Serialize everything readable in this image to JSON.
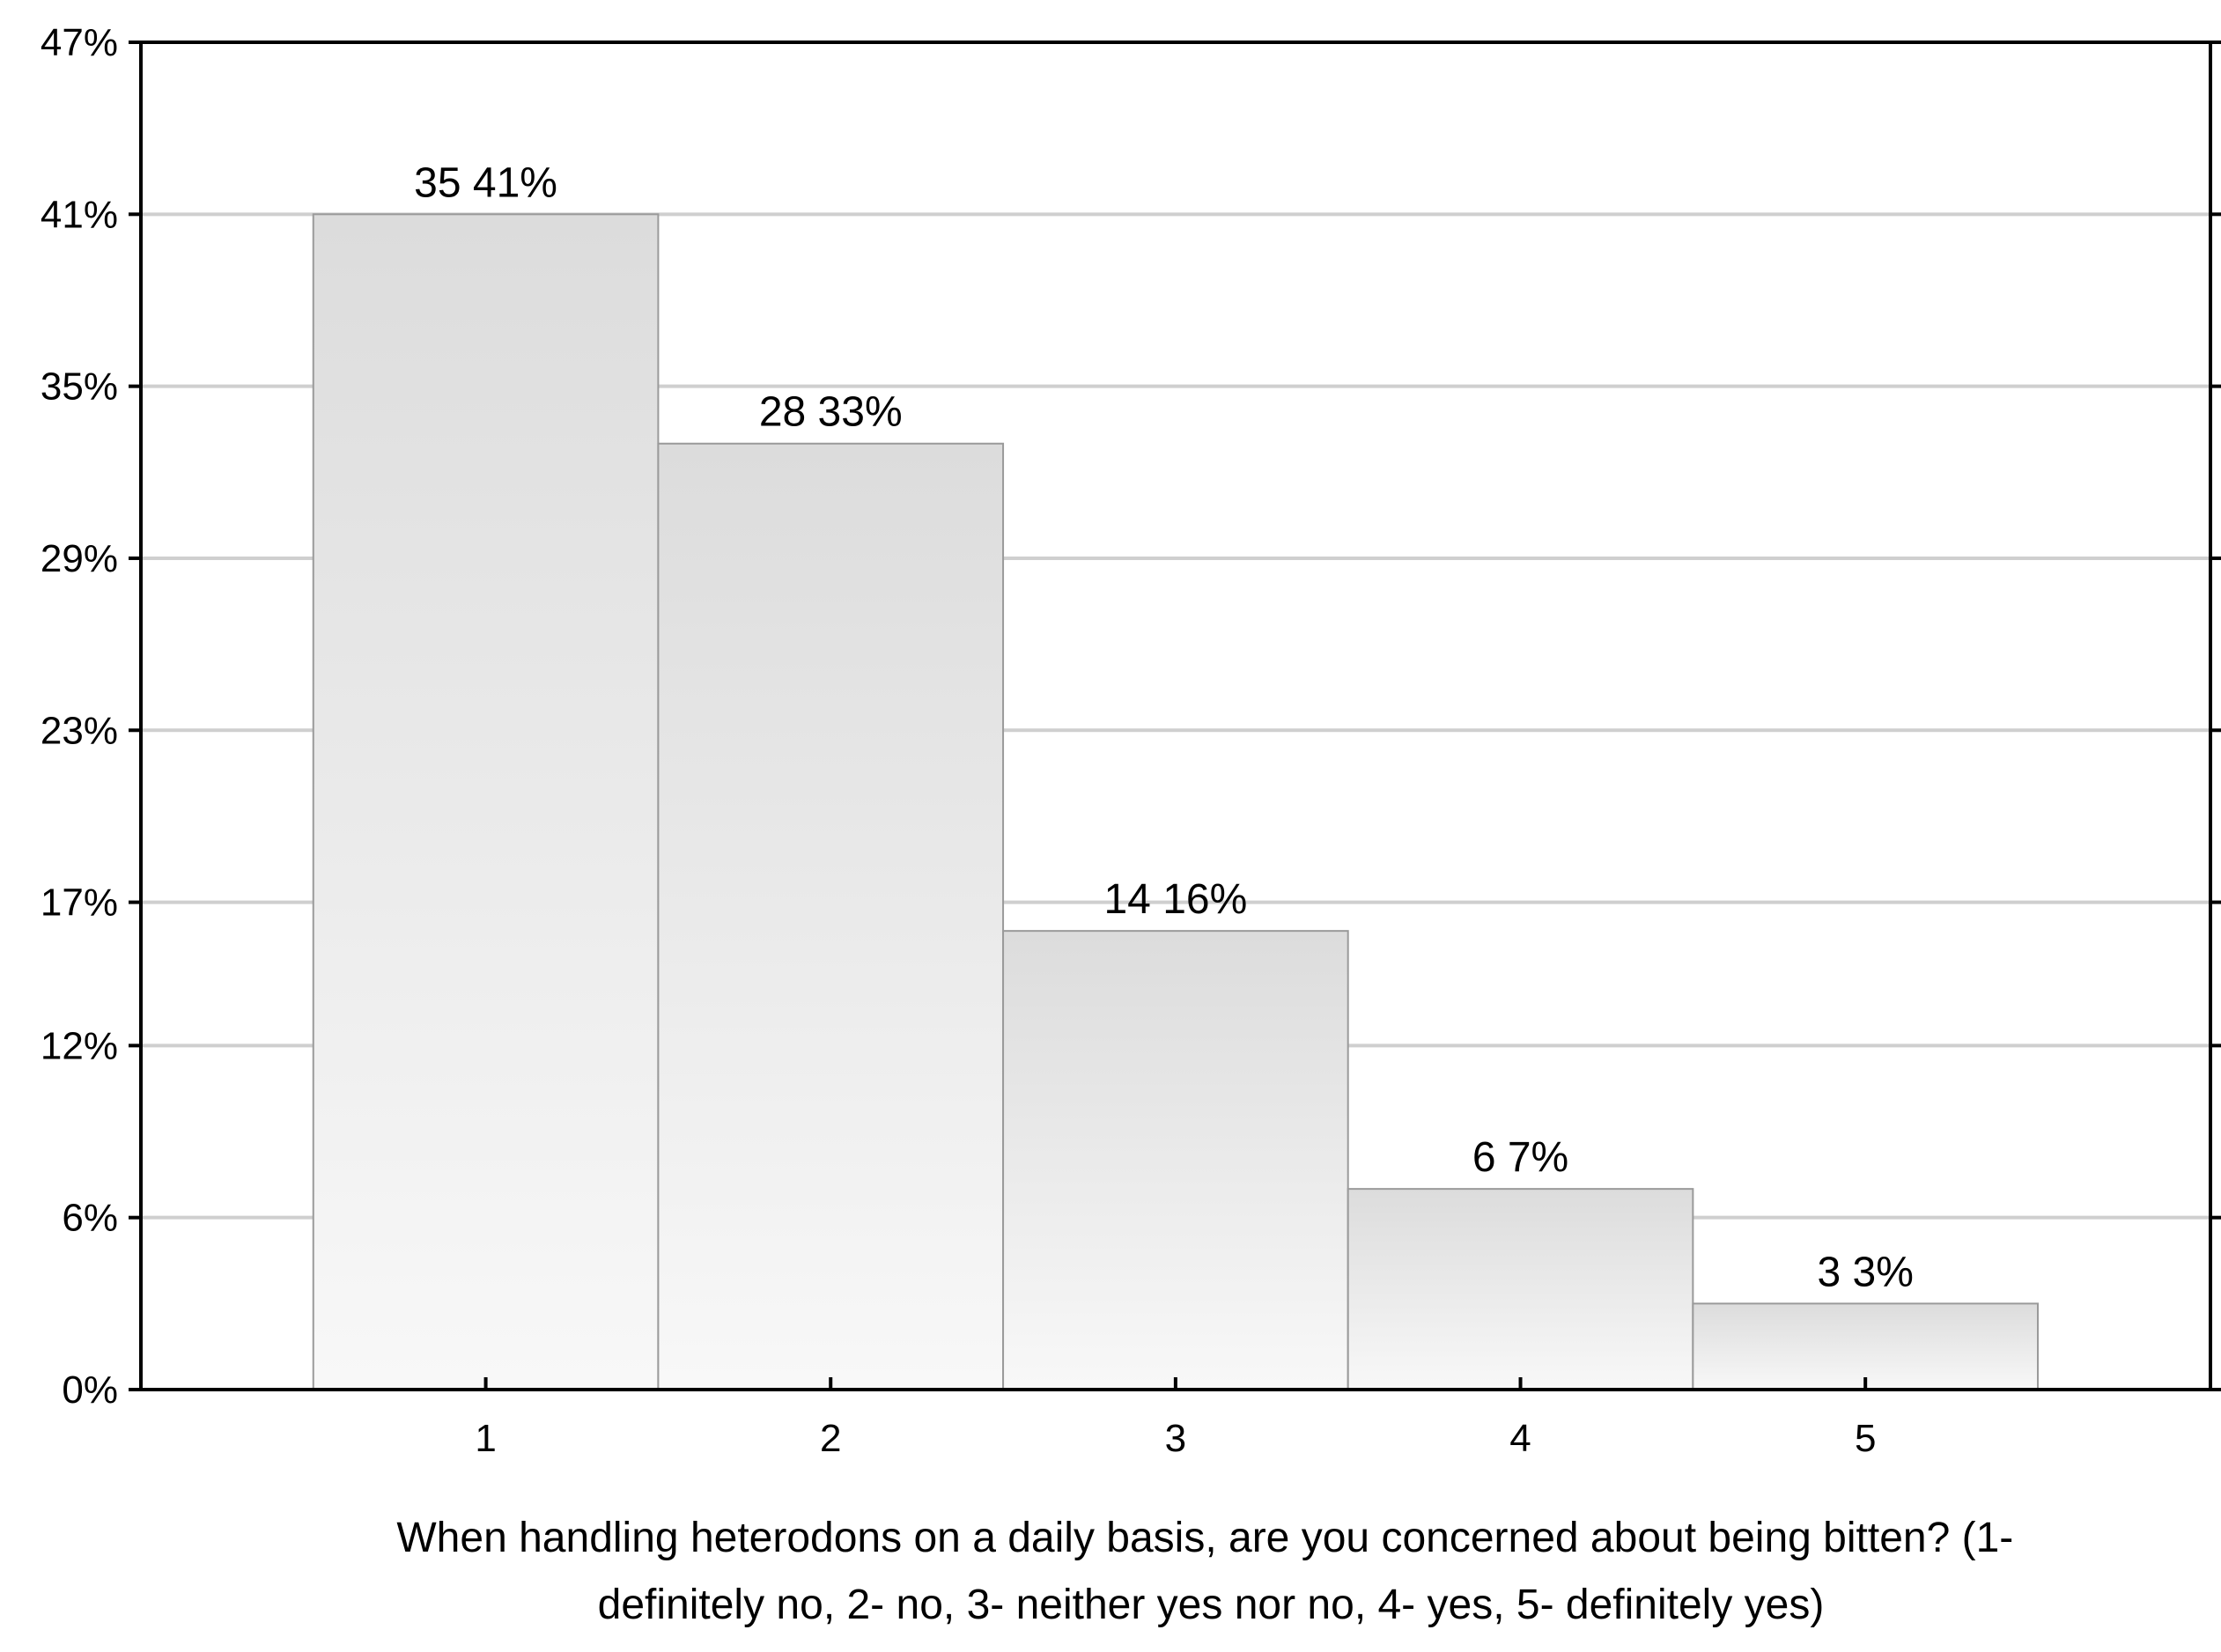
{
  "chart_data": {
    "type": "bar",
    "title": "",
    "xlabel": "When handling heterodons on a daily basis, are you concerned about being bitten? (1- definitely no, 2- no, 3- neither yes nor no, 4- yes, 5- definitely yes)",
    "xlabel_lines": [
      "When handling heterodons on a daily basis, are you concerned about being bitten? (1-",
      "definitely no, 2- no, 3- neither yes nor no, 4- yes, 5- definitely yes)"
    ],
    "ylabel": "",
    "categories": [
      "1",
      "2",
      "3",
      "4",
      "5"
    ],
    "counts": [
      35,
      28,
      14,
      6,
      3
    ],
    "values": [
      41,
      33,
      16,
      7,
      3
    ],
    "value_unit": "%",
    "bar_labels": [
      "35 41%",
      "28 33%",
      "14 16%",
      "6 7%",
      "3 3%"
    ],
    "ylim": [
      0,
      47
    ],
    "yticks": [
      0,
      6,
      12,
      17,
      23,
      29,
      35,
      41,
      47
    ],
    "ytick_labels": [
      "0%",
      "6%",
      "12%",
      "17%",
      "23%",
      "29%",
      "35%",
      "41%",
      "47%"
    ],
    "grid": true,
    "legend": "none",
    "colors": {
      "bar_top": "#dcdcdc",
      "bar_bottom": "#f8f8f8",
      "bar_edge": "#9a9a9a",
      "grid": "#cfcfcf",
      "frame": "#000000"
    }
  }
}
